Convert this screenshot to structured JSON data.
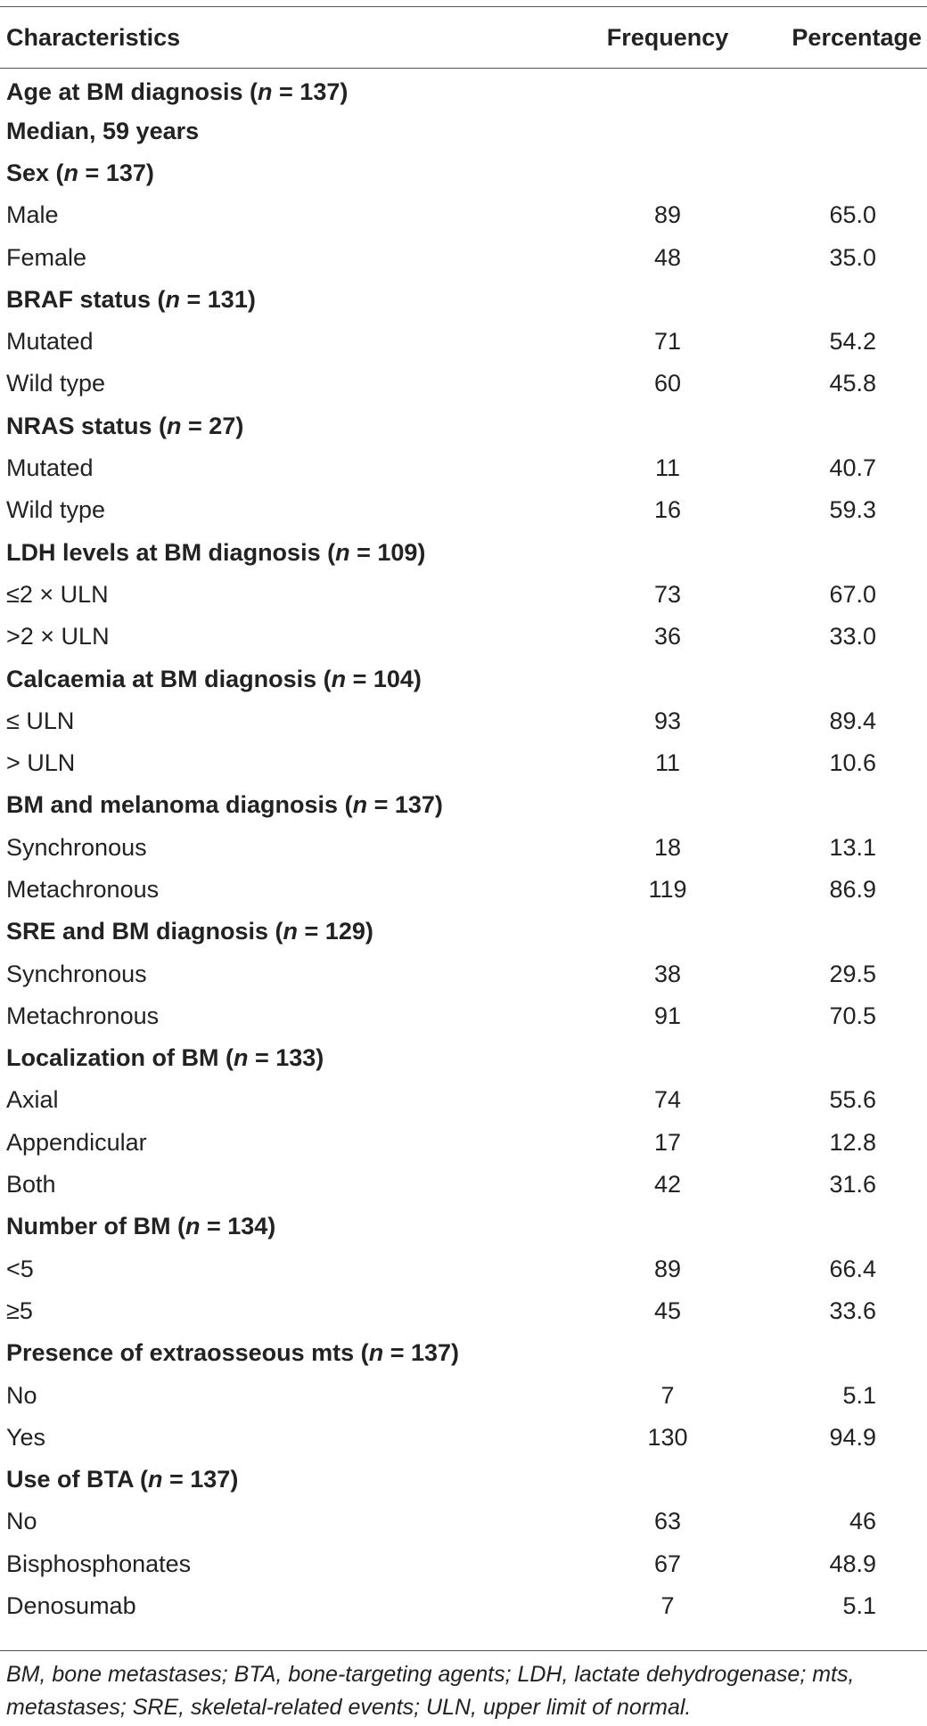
{
  "table": {
    "headers": [
      "Characteristics",
      "Frequency",
      "Percentage"
    ],
    "rows": [
      {
        "label": "Age at BM diagnosis (n = 137)",
        "group": true,
        "freq": "",
        "pct": ""
      },
      {
        "label": "Median, 59 years",
        "group": true,
        "freq": "",
        "pct": ""
      },
      {
        "label": "Sex (n = 137)",
        "group": true,
        "freq": "",
        "pct": ""
      },
      {
        "label": "Male",
        "group": false,
        "freq": "89",
        "pct": "65.0"
      },
      {
        "label": "Female",
        "group": false,
        "freq": "48",
        "pct": "35.0"
      },
      {
        "label": "BRAF status (n = 131)",
        "group": true,
        "freq": "",
        "pct": ""
      },
      {
        "label": "Mutated",
        "group": false,
        "freq": "71",
        "pct": "54.2"
      },
      {
        "label": "Wild type",
        "group": false,
        "freq": "60",
        "pct": "45.8"
      },
      {
        "label": "NRAS status (n = 27)",
        "group": true,
        "freq": "",
        "pct": ""
      },
      {
        "label": "Mutated",
        "group": false,
        "freq": "11",
        "pct": "40.7"
      },
      {
        "label": "Wild type",
        "group": false,
        "freq": "16",
        "pct": "59.3"
      },
      {
        "label": "LDH levels at BM diagnosis (n = 109)",
        "group": true,
        "freq": "",
        "pct": ""
      },
      {
        "label": "≤2 × ULN",
        "group": false,
        "freq": "73",
        "pct": "67.0"
      },
      {
        "label": ">2 × ULN",
        "group": false,
        "freq": "36",
        "pct": "33.0"
      },
      {
        "label": "Calcaemia at BM diagnosis (n = 104)",
        "group": true,
        "freq": "",
        "pct": ""
      },
      {
        "label": "≤ ULN",
        "group": false,
        "freq": "93",
        "pct": "89.4"
      },
      {
        "label": "> ULN",
        "group": false,
        "freq": "11",
        "pct": "10.6"
      },
      {
        "label": "BM and melanoma diagnosis (n = 137)",
        "group": true,
        "freq": "",
        "pct": ""
      },
      {
        "label": "Synchronous",
        "group": false,
        "freq": "18",
        "pct": "13.1"
      },
      {
        "label": "Metachronous",
        "group": false,
        "freq": "119",
        "pct": "86.9"
      },
      {
        "label": "SRE and BM diagnosis (n = 129)",
        "group": true,
        "freq": "",
        "pct": ""
      },
      {
        "label": "Synchronous",
        "group": false,
        "freq": "38",
        "pct": "29.5"
      },
      {
        "label": "Metachronous",
        "group": false,
        "freq": "91",
        "pct": "70.5"
      },
      {
        "label": "Localization of BM (n = 133)",
        "group": true,
        "freq": "",
        "pct": ""
      },
      {
        "label": "Axial",
        "group": false,
        "freq": "74",
        "pct": "55.6"
      },
      {
        "label": "Appendicular",
        "group": false,
        "freq": "17",
        "pct": "12.8"
      },
      {
        "label": "Both",
        "group": false,
        "freq": "42",
        "pct": "31.6"
      },
      {
        "label": "Number of BM (n = 134)",
        "group": true,
        "freq": "",
        "pct": ""
      },
      {
        "label": "<5",
        "group": false,
        "freq": "89",
        "pct": "66.4"
      },
      {
        "label": "≥5",
        "group": false,
        "freq": "45",
        "pct": "33.6"
      },
      {
        "label": "Presence of extraosseous mts (n = 137)",
        "group": true,
        "freq": "",
        "pct": ""
      },
      {
        "label": "No",
        "group": false,
        "freq": "7",
        "pct": "5.1"
      },
      {
        "label": "Yes",
        "group": false,
        "freq": "130",
        "pct": "94.9"
      },
      {
        "label": "Use of BTA (n = 137)",
        "group": true,
        "freq": "",
        "pct": ""
      },
      {
        "label": "No",
        "group": false,
        "freq": "63",
        "pct": "46"
      },
      {
        "label": "Bisphosphonates",
        "group": false,
        "freq": "67",
        "pct": "48.9"
      },
      {
        "label": "Denosumab",
        "group": false,
        "freq": "7",
        "pct": "5.1"
      }
    ]
  },
  "footnote": "BM, bone metastases; BTA, bone-targeting agents; LDH, lactate dehydrogenase; mts, metastases; SRE, skeletal-related events; ULN, upper limit of normal."
}
